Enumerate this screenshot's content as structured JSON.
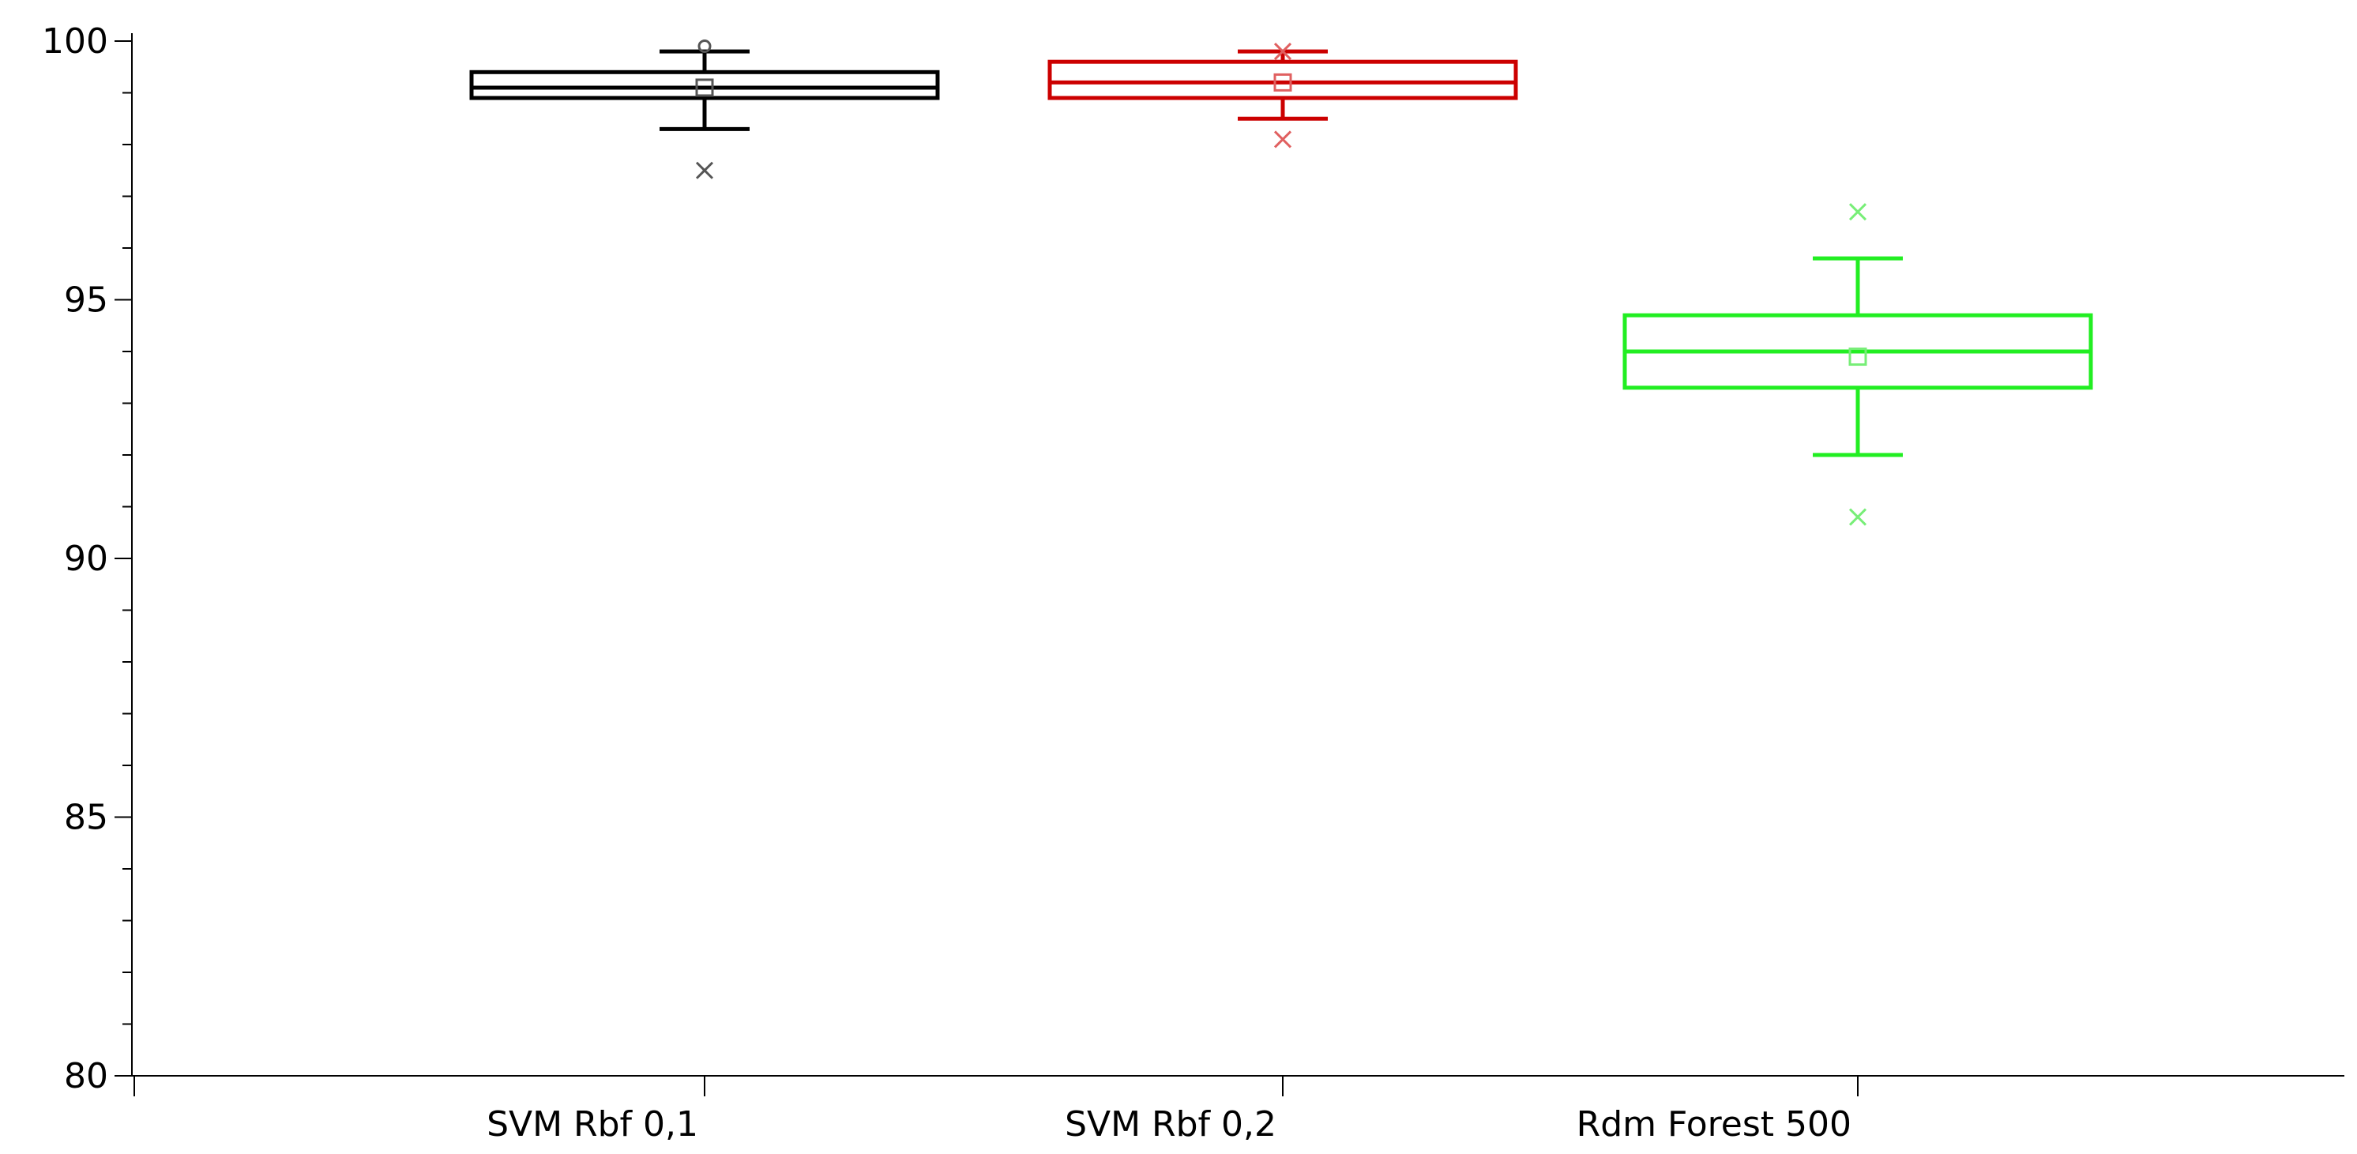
{
  "chart_data": {
    "type": "box",
    "title": "",
    "xlabel": "",
    "ylabel": "",
    "ylim": [
      80,
      100
    ],
    "yticks": [
      80,
      85,
      90,
      95,
      100
    ],
    "ytick_labels": [
      "80",
      "85",
      "90",
      "95",
      "100"
    ],
    "yminor_step": 1,
    "grid": false,
    "categories": [
      "SVM Rbf 0,1",
      "SVM Rbf 0,2",
      "Rdm Forest 500"
    ],
    "boxes": [
      {
        "category": "SVM Rbf 0,1",
        "color": "#000000",
        "outlier_color": "#555555",
        "whisker_low": 98.3,
        "q1": 98.9,
        "median": 99.1,
        "q3": 99.4,
        "whisker_high": 99.8,
        "mean": 99.1,
        "outliers": [
          97.5
        ],
        "extremes": [
          99.9
        ]
      },
      {
        "category": "SVM Rbf 0,2",
        "color": "#cc0000",
        "outlier_color": "#e06060",
        "whisker_low": 98.5,
        "q1": 98.9,
        "median": 99.2,
        "q3": 99.6,
        "whisker_high": 99.8,
        "mean": 99.2,
        "outliers": [
          98.1,
          99.8
        ],
        "extremes": []
      },
      {
        "category": "Rdm Forest 500",
        "color": "#22ee22",
        "outlier_color": "#77ee77",
        "whisker_low": 92.0,
        "q1": 93.3,
        "median": 94.0,
        "q3": 94.7,
        "whisker_high": 95.8,
        "mean": 93.9,
        "outliers": [
          90.8,
          96.7
        ],
        "extremes": []
      }
    ]
  }
}
